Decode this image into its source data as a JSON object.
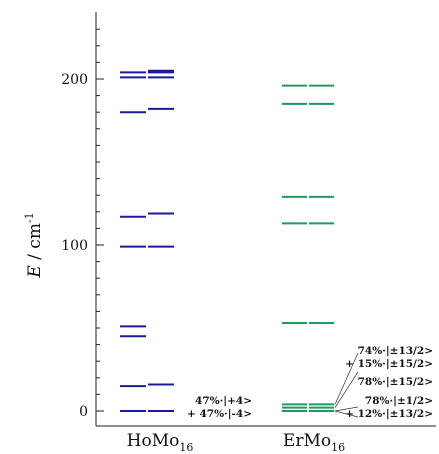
{
  "chart_data": {
    "type": "energy-level-diagram",
    "title": "",
    "ylabel_var": "E",
    "ylabel_unit": "cm",
    "ylabel_exp": "-1",
    "ylim": [
      -8,
      240
    ],
    "yticks": [
      0,
      100,
      200
    ],
    "categories": [
      {
        "name": "HoMo",
        "sub": "16",
        "color": "#1a1a9c"
      },
      {
        "name": "ErMo",
        "sub": "16",
        "color": "#1f9a5e"
      }
    ],
    "series": [
      {
        "name": "HoMo16",
        "left": [
          0,
          15,
          45,
          51,
          99,
          117,
          180,
          201,
          204
        ],
        "right": [
          0,
          16,
          99,
          119,
          182,
          201,
          204,
          205
        ]
      },
      {
        "name": "ErMo16",
        "left": [
          0,
          2,
          4,
          53,
          113,
          129,
          185,
          196
        ],
        "right": [
          0,
          2,
          4,
          53,
          113,
          129,
          185,
          196
        ]
      }
    ],
    "annotations": [
      {
        "id": "ho-a1",
        "text": "47%·|+4>",
        "color": "#111111"
      },
      {
        "id": "ho-a2",
        "text": "+ 47%·|-4>",
        "color": "#111111"
      },
      {
        "id": "er-a1",
        "text": "74%·|±13/2>",
        "color": "#111111"
      },
      {
        "id": "er-a2",
        "text": "+ 15%·|±15/2>",
        "color": "#111111"
      },
      {
        "id": "er-a3",
        "text": "78%·|±15/2>",
        "color": "#d62020"
      },
      {
        "id": "er-a4",
        "text": "78%·|±1/2>",
        "color": "#111111"
      },
      {
        "id": "er-a5",
        "text": "+ 12%·|±13/2>",
        "color": "#111111"
      }
    ]
  }
}
